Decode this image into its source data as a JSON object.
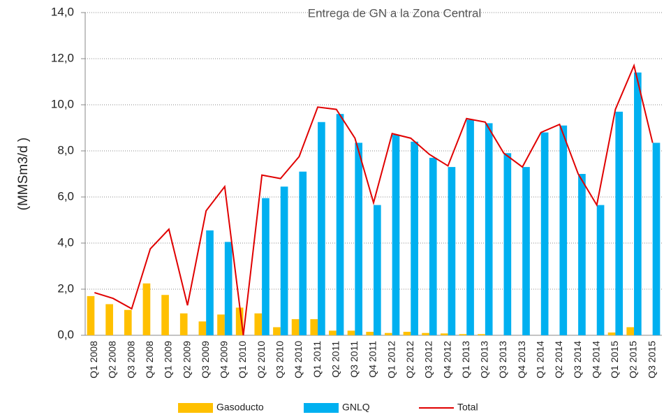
{
  "chart_data": {
    "type": "bar",
    "title": "Entrega de GN a la Zona Central",
    "y_label": "(MMSm3/d )",
    "categories": [
      "Q1 2008",
      "Q2 2008",
      "Q3 2008",
      "Q4 2008",
      "Q1 2009",
      "Q2 2009",
      "Q3 2009",
      "Q4 2009",
      "Q1 2010",
      "Q2 2010",
      "Q3 2010",
      "Q4 2010",
      "Q1 2011",
      "Q2 2011",
      "Q3 2011",
      "Q4 2011",
      "Q1 2012",
      "Q2 2012",
      "Q3 2012",
      "Q4 2012",
      "Q1 2013",
      "Q2 2013",
      "Q3 2013",
      "Q4 2013",
      "Q1 2014",
      "Q2 2014",
      "Q3 2014",
      "Q4 2014",
      "Q1 2015",
      "Q2 2015",
      "Q3 2015"
    ],
    "series": [
      {
        "name": "Gasoducto",
        "type": "bar",
        "color": "#ffc000",
        "values": [
          1.7,
          1.35,
          1.1,
          2.25,
          1.75,
          0.95,
          0.6,
          0.9,
          1.2,
          0.95,
          0.35,
          0.7,
          0.7,
          0.2,
          0.2,
          0.15,
          0.1,
          0.15,
          0.1,
          0.08,
          0.05,
          0.05,
          0,
          0,
          0,
          0,
          0,
          0,
          0.12,
          0.35,
          0
        ]
      },
      {
        "name": "GNLQ",
        "type": "bar",
        "color": "#00b0f0",
        "values": [
          0,
          0,
          0,
          0,
          0,
          0,
          4.55,
          4.05,
          0,
          5.95,
          6.45,
          7.1,
          9.25,
          9.6,
          8.35,
          5.65,
          8.7,
          8.4,
          7.7,
          7.3,
          9.35,
          9.2,
          7.9,
          7.3,
          8.8,
          9.1,
          7.0,
          5.65,
          9.7,
          11.4,
          8.35
        ]
      },
      {
        "name": "Total",
        "type": "line",
        "color": "#e00000",
        "values": [
          1.85,
          1.6,
          1.15,
          3.75,
          4.6,
          1.3,
          5.4,
          6.45,
          0,
          6.95,
          6.8,
          7.75,
          9.9,
          9.8,
          8.55,
          5.75,
          8.75,
          8.55,
          7.85,
          7.35,
          9.4,
          9.25,
          7.9,
          7.3,
          8.8,
          9.15,
          7.0,
          5.65,
          9.8,
          11.7,
          8.35
        ]
      }
    ],
    "ylim": [
      0,
      14
    ],
    "yticks": [
      {
        "value": 0,
        "label": "0,0"
      },
      {
        "value": 2,
        "label": "2,0"
      },
      {
        "value": 4,
        "label": "4,0"
      },
      {
        "value": 6,
        "label": "6,0"
      },
      {
        "value": 8,
        "label": "8,0"
      },
      {
        "value": 10,
        "label": "10,0"
      },
      {
        "value": 12,
        "label": "12,0"
      },
      {
        "value": 14,
        "label": "14,0"
      }
    ],
    "grid": true
  }
}
